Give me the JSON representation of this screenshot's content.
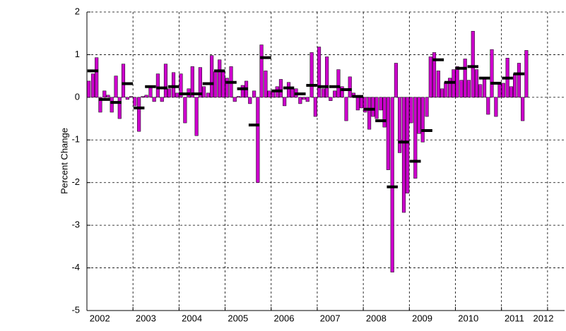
{
  "chart_data": {
    "type": "bar",
    "ylabel": "Percent Change",
    "xlim": [
      2002,
      2012.37
    ],
    "ylim": [
      -5,
      2
    ],
    "xticks": [
      2002,
      2003,
      2004,
      2005,
      2006,
      2007,
      2008,
      2009,
      2010,
      2011,
      2012
    ],
    "yticks": [
      -5,
      -4,
      -3,
      -2,
      -1,
      0,
      1,
      2
    ],
    "grid": true,
    "series": [
      {
        "type": "bar",
        "color": "#cc00cc",
        "x": [
          2002.04,
          2002.13,
          2002.21,
          2002.29,
          2002.38,
          2002.46,
          2002.54,
          2002.63,
          2002.71,
          2002.79,
          2002.88,
          2002.96,
          2003.04,
          2003.13,
          2003.21,
          2003.29,
          2003.38,
          2003.46,
          2003.54,
          2003.63,
          2003.71,
          2003.79,
          2003.88,
          2003.96,
          2004.04,
          2004.13,
          2004.21,
          2004.29,
          2004.38,
          2004.46,
          2004.54,
          2004.63,
          2004.71,
          2004.79,
          2004.88,
          2004.96,
          2005.04,
          2005.13,
          2005.21,
          2005.29,
          2005.38,
          2005.46,
          2005.54,
          2005.63,
          2005.71,
          2005.79,
          2005.88,
          2005.96,
          2006.04,
          2006.13,
          2006.21,
          2006.29,
          2006.38,
          2006.46,
          2006.54,
          2006.63,
          2006.71,
          2006.79,
          2006.88,
          2006.96,
          2007.04,
          2007.13,
          2007.21,
          2007.29,
          2007.38,
          2007.46,
          2007.54,
          2007.63,
          2007.71,
          2007.79,
          2007.88,
          2007.96,
          2008.04,
          2008.13,
          2008.21,
          2008.29,
          2008.38,
          2008.46,
          2008.54,
          2008.63,
          2008.71,
          2008.79,
          2008.88,
          2008.96,
          2009.04,
          2009.13,
          2009.21,
          2009.29,
          2009.38,
          2009.46,
          2009.54,
          2009.63,
          2009.71,
          2009.79,
          2009.88,
          2009.96,
          2010.04,
          2010.13,
          2010.21,
          2010.29,
          2010.38,
          2010.46,
          2010.54,
          2010.63,
          2010.71,
          2010.79,
          2010.88,
          2010.96,
          2011.04,
          2011.13,
          2011.21,
          2011.29,
          2011.38,
          2011.46,
          2011.54
        ],
        "values": [
          0.38,
          0.55,
          0.93,
          -0.35,
          0.15,
          0.05,
          -0.35,
          0.5,
          -0.5,
          0.78,
          -0.05,
          0.02,
          -0.2,
          -0.8,
          0.02,
          0.05,
          0.25,
          -0.1,
          0.55,
          -0.1,
          0.78,
          0.2,
          0.58,
          0.1,
          0.55,
          -0.6,
          0.2,
          0.72,
          -0.9,
          0.7,
          0.25,
          0.1,
          0.98,
          0.6,
          0.88,
          0.6,
          0.45,
          0.72,
          -0.1,
          0.02,
          0.28,
          0.38,
          -0.15,
          0.15,
          -2.0,
          1.23,
          0.62,
          0.15,
          0.15,
          0.25,
          0.42,
          -0.2,
          0.35,
          0.2,
          0.2,
          -0.15,
          -0.05,
          -0.1,
          1.05,
          -0.45,
          1.18,
          0.2,
          0.95,
          -0.08,
          0.15,
          0.65,
          0.25,
          -0.55,
          0.48,
          0.1,
          -0.3,
          -0.25,
          -0.35,
          -0.75,
          -0.45,
          -0.5,
          -0.3,
          -0.7,
          -1.7,
          -4.1,
          0.8,
          -1.3,
          -2.7,
          -2.25,
          -0.6,
          -1.9,
          -0.85,
          -1.05,
          -0.45,
          0.95,
          1.05,
          0.62,
          0.2,
          0.35,
          0.45,
          0.65,
          0.72,
          0.4,
          0.9,
          0.4,
          1.55,
          0.65,
          0.3,
          0.45,
          -0.4,
          1.12,
          -0.45,
          0.35,
          0.33,
          0.92,
          0.25,
          0.55,
          0.8,
          -0.55,
          1.1
        ]
      },
      {
        "type": "dash",
        "color": "#000000",
        "x": [
          2002.13,
          2002.38,
          2002.63,
          2002.88,
          2003.13,
          2003.38,
          2003.63,
          2003.88,
          2004.13,
          2004.38,
          2004.63,
          2004.88,
          2005.13,
          2005.38,
          2005.63,
          2005.88,
          2006.13,
          2006.38,
          2006.63,
          2006.88,
          2007.13,
          2007.38,
          2007.63,
          2007.88,
          2008.13,
          2008.38,
          2008.63,
          2008.88,
          2009.13,
          2009.38,
          2009.63,
          2009.88,
          2010.13,
          2010.38,
          2010.63,
          2010.88,
          2011.13,
          2011.38
        ],
        "values": [
          0.62,
          -0.05,
          -0.12,
          0.32,
          -0.25,
          0.25,
          0.22,
          0.25,
          0.08,
          0.08,
          0.32,
          0.62,
          0.35,
          0.2,
          -0.65,
          0.93,
          0.15,
          0.22,
          0.08,
          0.28,
          0.25,
          0.25,
          0.18,
          0.02,
          -0.28,
          -0.55,
          -2.1,
          -1.05,
          -1.5,
          -0.78,
          0.88,
          0.35,
          0.68,
          0.72,
          0.45,
          0.33,
          0.45,
          0.55
        ]
      }
    ]
  }
}
